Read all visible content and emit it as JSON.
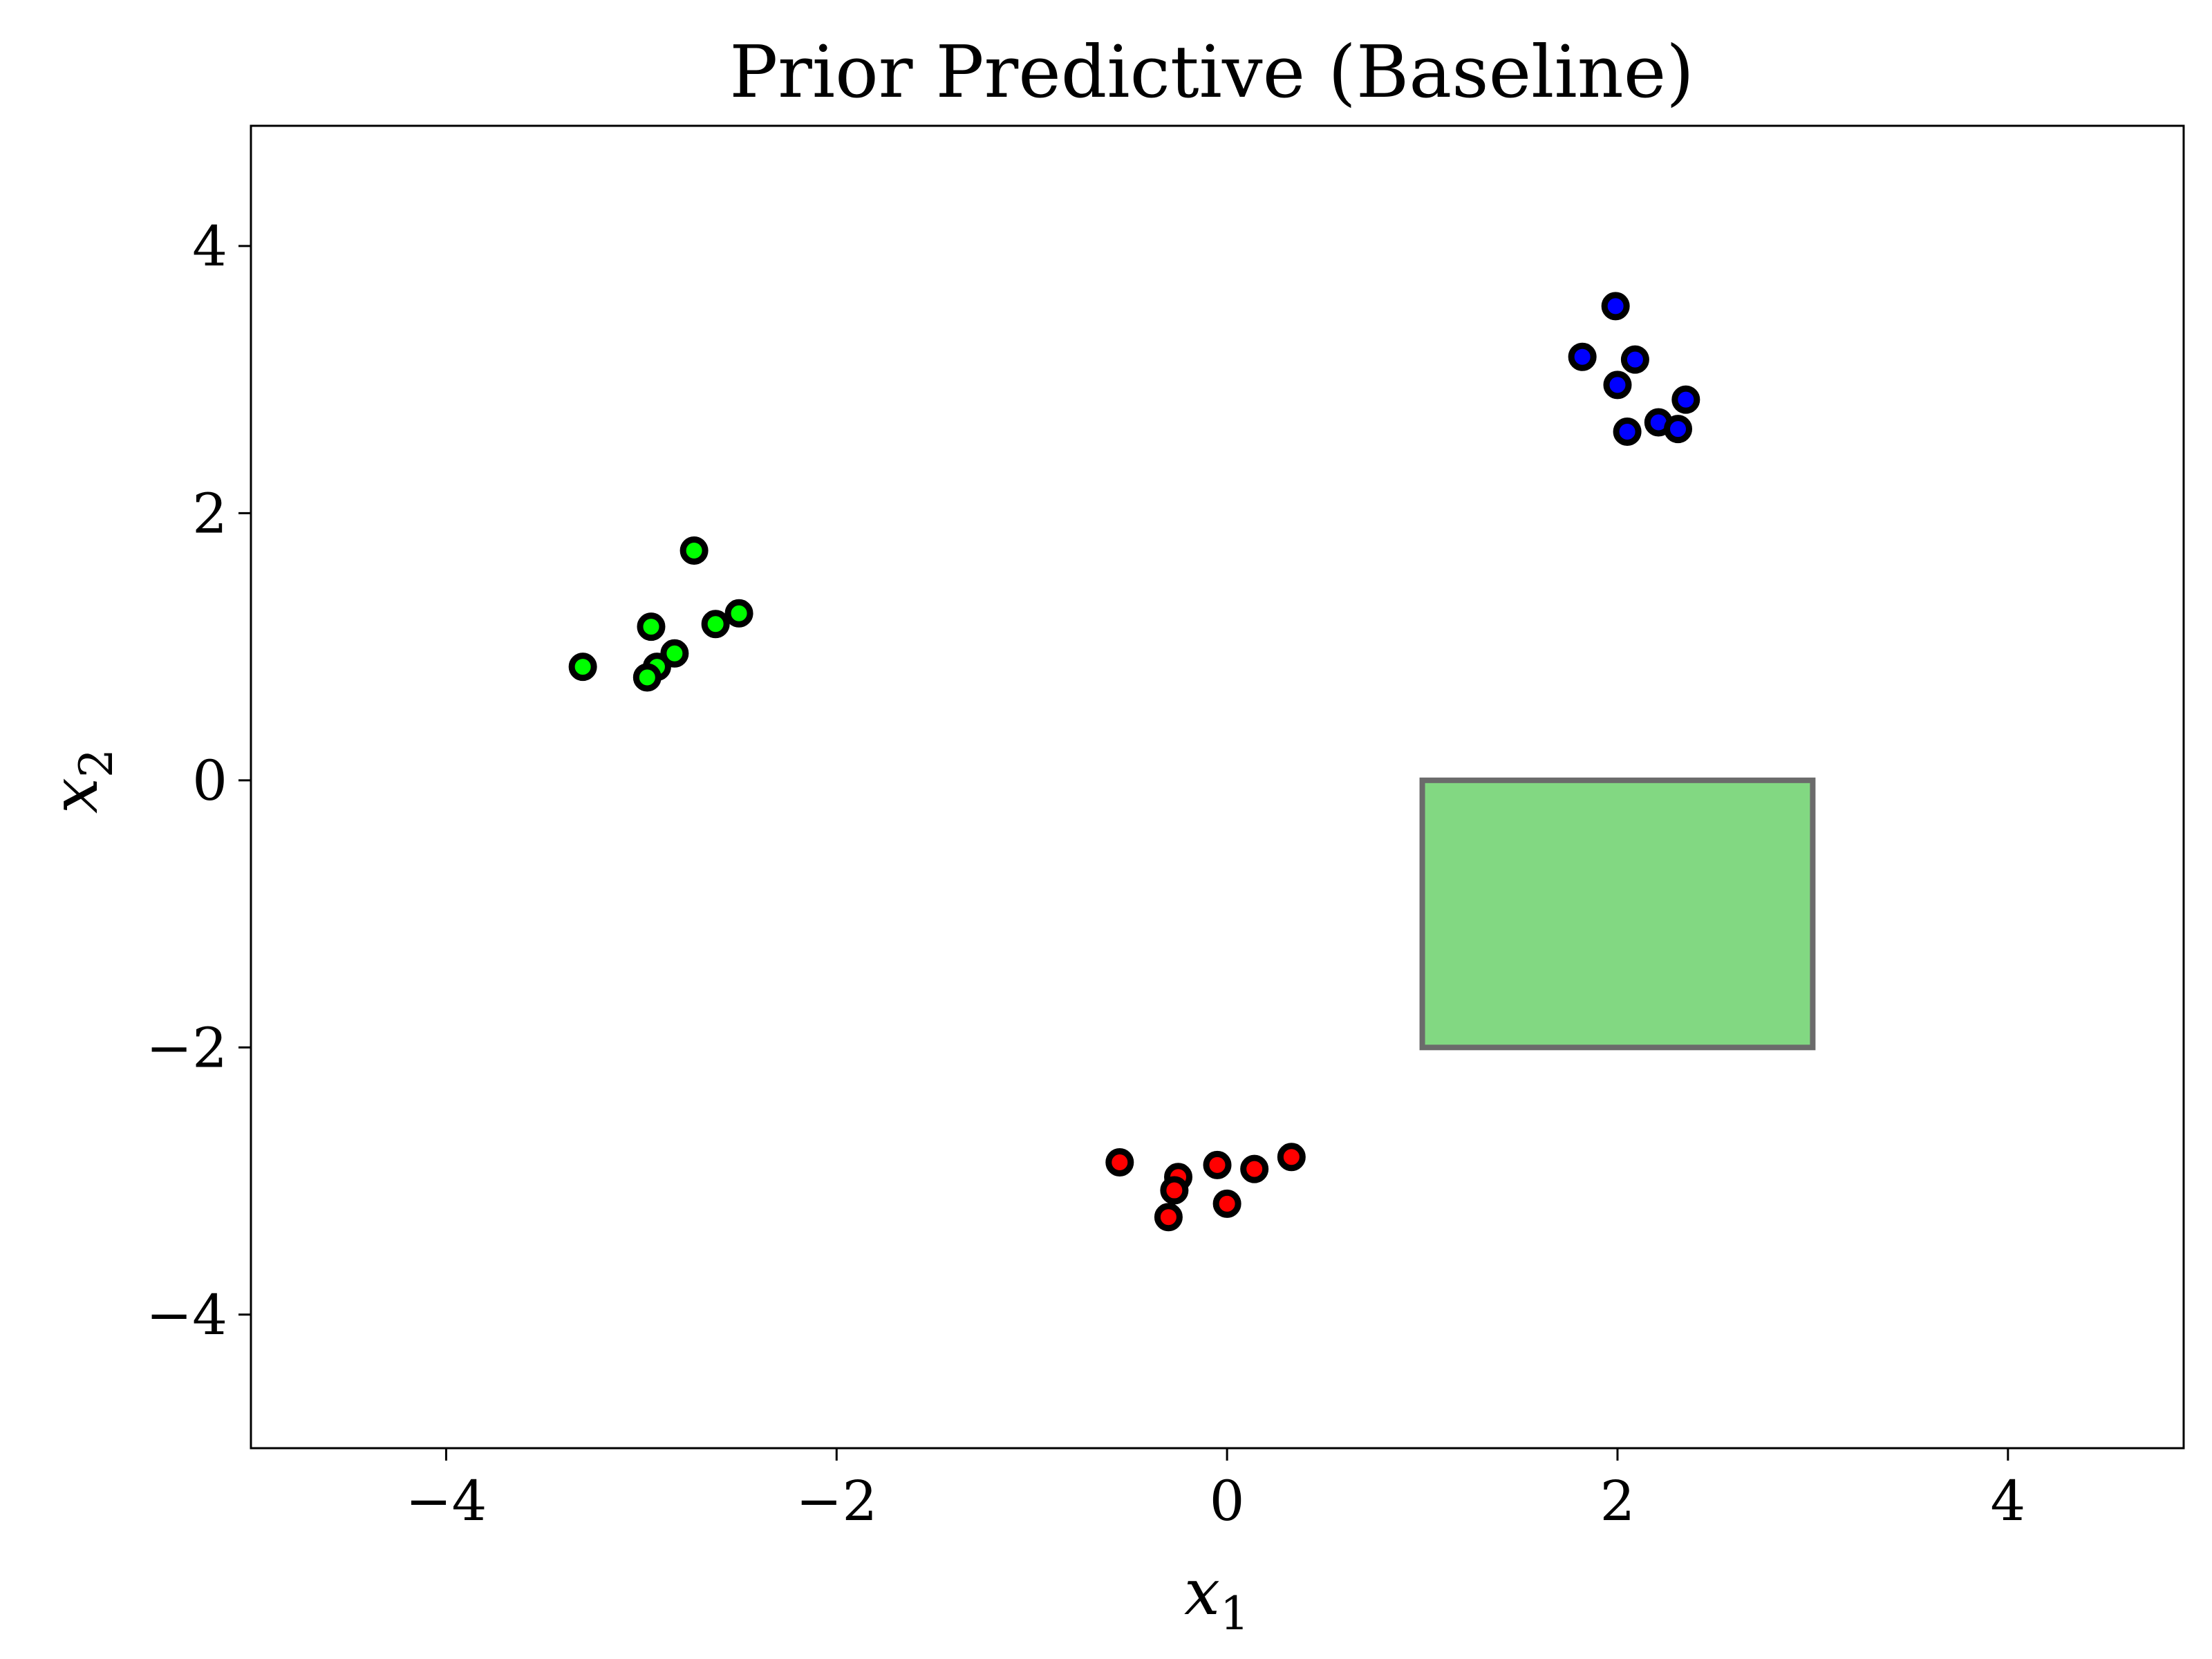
{
  "chart_data": {
    "type": "scatter",
    "title": "Prior Predictive (Baseline)",
    "xlabel": {
      "symbol": "x",
      "subscript": "1"
    },
    "ylabel": {
      "symbol": "x",
      "subscript": "2"
    },
    "xlim": [
      -5,
      4.9
    ],
    "ylim": [
      -5,
      4.9
    ],
    "xticks": [
      -4,
      -2,
      0,
      2,
      4
    ],
    "yticks": [
      -4,
      -2,
      0,
      2,
      4
    ],
    "xtick_labels": [
      "−4",
      "−2",
      "0",
      "2",
      "4"
    ],
    "ytick_labels": [
      "−4",
      "−2",
      "0",
      "2",
      "4"
    ],
    "grid": false,
    "marker_edge_color": "#000000",
    "series": [
      {
        "color": "#00ff00",
        "points": [
          [
            -3.3,
            0.85
          ],
          [
            -2.95,
            1.15
          ],
          [
            -2.92,
            0.85
          ],
          [
            -2.97,
            0.77
          ],
          [
            -2.83,
            0.95
          ],
          [
            -2.73,
            1.72
          ],
          [
            -2.62,
            1.17
          ],
          [
            -2.5,
            1.25
          ]
        ]
      },
      {
        "color": "#0000ff",
        "points": [
          [
            1.82,
            3.17
          ],
          [
            1.99,
            3.55
          ],
          [
            2.0,
            2.96
          ],
          [
            2.09,
            3.15
          ],
          [
            2.05,
            2.61
          ],
          [
            2.21,
            2.68
          ],
          [
            2.31,
            2.63
          ],
          [
            2.35,
            2.85
          ]
        ]
      },
      {
        "color": "#ff0000",
        "points": [
          [
            -0.55,
            -2.86
          ],
          [
            -0.25,
            -2.97
          ],
          [
            -0.27,
            -3.07
          ],
          [
            -0.3,
            -3.27
          ],
          [
            -0.05,
            -2.88
          ],
          [
            0.0,
            -3.17
          ],
          [
            0.14,
            -2.91
          ],
          [
            0.33,
            -2.82
          ]
        ]
      }
    ],
    "regions": [
      {
        "shape": "rectangle",
        "x_range": [
          1,
          3
        ],
        "y_range": [
          -2,
          0
        ],
        "fill": "#82d882",
        "edge": "#6b6b6b"
      }
    ]
  }
}
